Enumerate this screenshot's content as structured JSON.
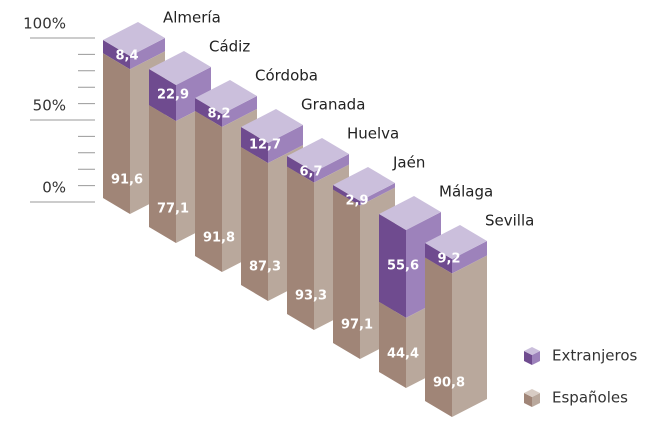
{
  "chart_data": {
    "type": "isometric_stacked_bar",
    "categories": [
      "Almería",
      "Cádiz",
      "Córdoba",
      "Granada",
      "Huelva",
      "Jaén",
      "Málaga",
      "Sevilla"
    ],
    "series": [
      {
        "name": "Españoles",
        "color": "#a08577",
        "side_color": "#b9a89c",
        "values": [
          91.6,
          77.1,
          91.8,
          87.3,
          93.3,
          97.1,
          44.4,
          90.8
        ],
        "value_labels": [
          "91,6",
          "77,1",
          "91,8",
          "87,3",
          "93,3",
          "97,1",
          "44,4",
          "90,8"
        ]
      },
      {
        "name": "Extranjeros",
        "color": "#6f4b8f",
        "side_color": "#9d82bb",
        "top_color": "#cbbfdc",
        "values": [
          8.4,
          22.9,
          8.2,
          12.7,
          6.7,
          2.9,
          55.6,
          9.2
        ],
        "value_labels": [
          "8,4",
          "22,9",
          "8,2",
          "12,7",
          "6,7",
          "2,9",
          "55,6",
          "9,2"
        ]
      }
    ],
    "ylim": [
      0,
      100
    ],
    "yticks": [
      {
        "value": 0,
        "label": "0%"
      },
      {
        "value": 50,
        "label": "50%"
      },
      {
        "value": 100,
        "label": "100%"
      }
    ],
    "minor_yticks": [
      10,
      20,
      30,
      40,
      60,
      70,
      80,
      90
    ]
  }
}
